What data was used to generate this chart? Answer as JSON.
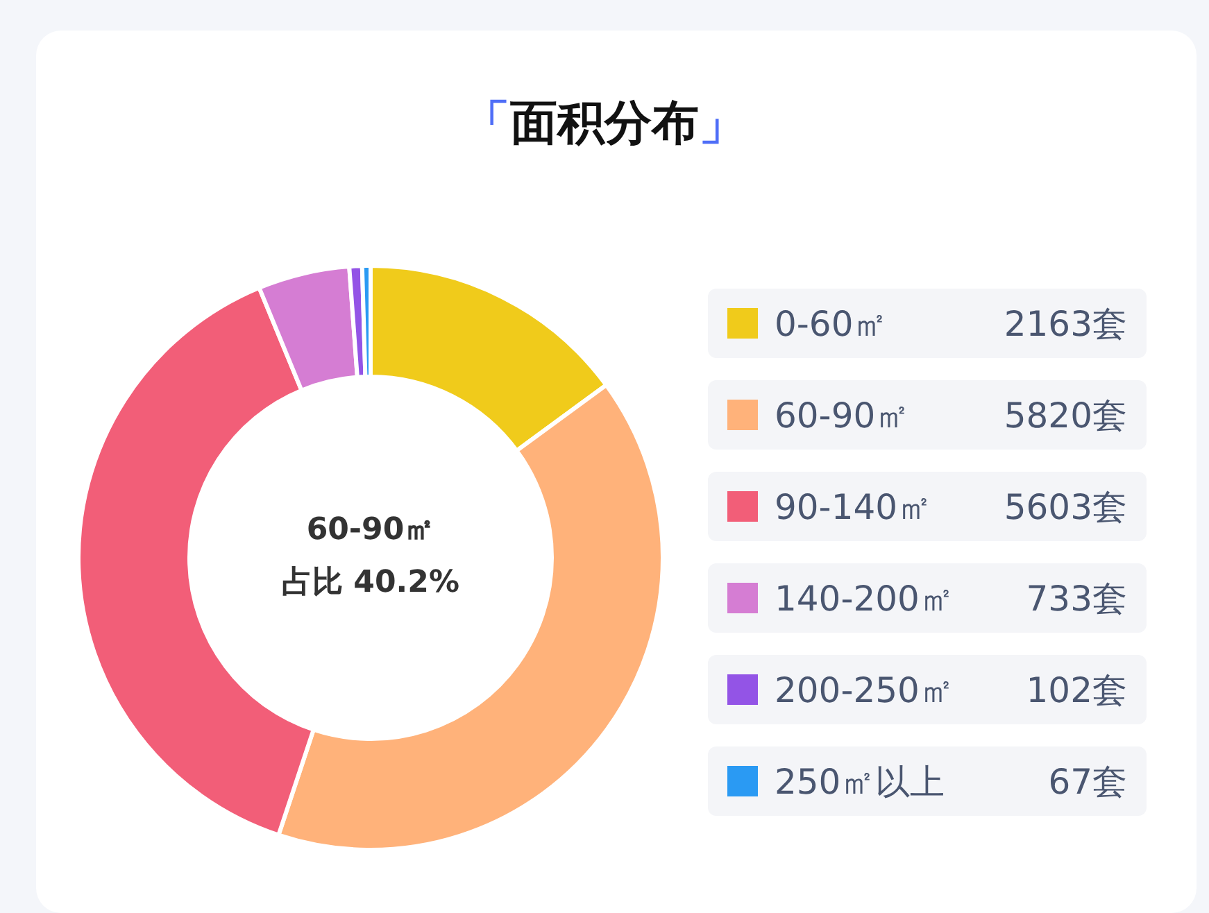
{
  "chart_data": {
    "type": "donut",
    "title": "「面积分布」",
    "categories": [
      "0-60㎡",
      "60-90㎡",
      "90-140㎡",
      "140-200㎡",
      "200-250㎡",
      "250㎡以上"
    ],
    "values": [
      2163,
      5820,
      5603,
      733,
      102,
      67
    ],
    "value_labels": [
      "2163套",
      "5820套",
      "5603套",
      "733套",
      "102套",
      "67套"
    ],
    "colors": [
      "#f0cb1b",
      "#ffb27a",
      "#f25e78",
      "#d57dd3",
      "#9354e6",
      "#2a9af3"
    ],
    "legend": "right",
    "annotations": [
      "60-90㎡",
      "占比 40.2%"
    ]
  }
}
